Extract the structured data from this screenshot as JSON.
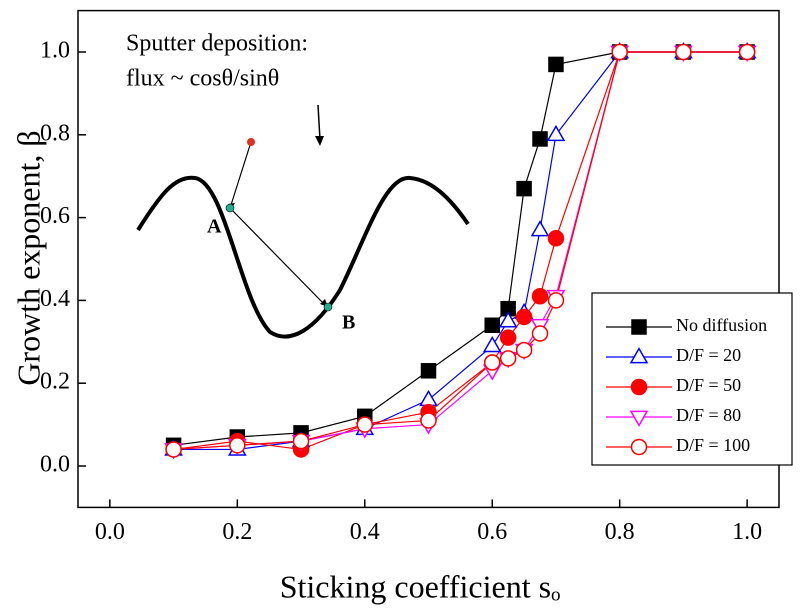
{
  "chart_data": {
    "type": "line",
    "x_label": "Sticking coefficient sₒ",
    "y_label": "Growth exponent, β",
    "annotations": [
      "Sputter deposition:",
      "flux ~ cosθ/sinθ",
      "A",
      "B"
    ],
    "x": [
      0.1,
      0.2,
      0.3,
      0.4,
      0.5,
      0.6,
      0.625,
      0.65,
      0.675,
      0.7,
      0.8,
      0.9,
      1.0
    ],
    "series": [
      {
        "name": "No diffusion",
        "color": "#000000",
        "marker": "square",
        "filled": true,
        "values": [
          0.05,
          0.07,
          0.08,
          0.12,
          0.23,
          0.34,
          0.38,
          0.67,
          0.79,
          0.97,
          1,
          1,
          1
        ]
      },
      {
        "name": "D/F = 20",
        "color": "#0000ff",
        "marker": "triangle",
        "filled": false,
        "values": [
          0.04,
          0.04,
          0.06,
          0.09,
          0.16,
          0.29,
          0.35,
          0.37,
          0.57,
          0.8,
          1,
          1,
          1
        ]
      },
      {
        "name": "D/F = 50",
        "color": "#ff0000",
        "marker": "circle",
        "filled": true,
        "values": [
          0.04,
          0.06,
          0.04,
          0.1,
          0.13,
          0.25,
          0.31,
          0.36,
          0.41,
          0.55,
          1,
          1,
          1
        ]
      },
      {
        "name": "D/F = 80",
        "color": "#ff00ff",
        "marker": "triangle-down",
        "filled": false,
        "values": [
          0.04,
          0.05,
          0.06,
          0.09,
          0.1,
          0.23,
          0.26,
          0.28,
          0.34,
          0.41,
          1,
          1,
          1
        ]
      },
      {
        "name": "D/F = 100",
        "color": "#ff0000",
        "marker": "circle",
        "filled": false,
        "values": [
          0.04,
          0.05,
          0.06,
          0.1,
          0.11,
          0.25,
          0.26,
          0.28,
          0.32,
          0.4,
          1,
          1,
          1
        ]
      }
    ],
    "xlim": [
      -0.05,
      1.05
    ],
    "ylim": [
      -0.1,
      1.1
    ],
    "xticks": [
      {
        "value": 0,
        "label": "0.0"
      },
      0.2,
      0.4,
      0.6,
      0.8,
      {
        "value": 1,
        "label": "1.0"
      }
    ],
    "yticks": [
      {
        "value": 0,
        "label": "0.0"
      },
      0.2,
      0.4,
      0.6,
      0.8,
      {
        "value": 1,
        "label": "1.0"
      }
    ],
    "legend": "lower right"
  }
}
